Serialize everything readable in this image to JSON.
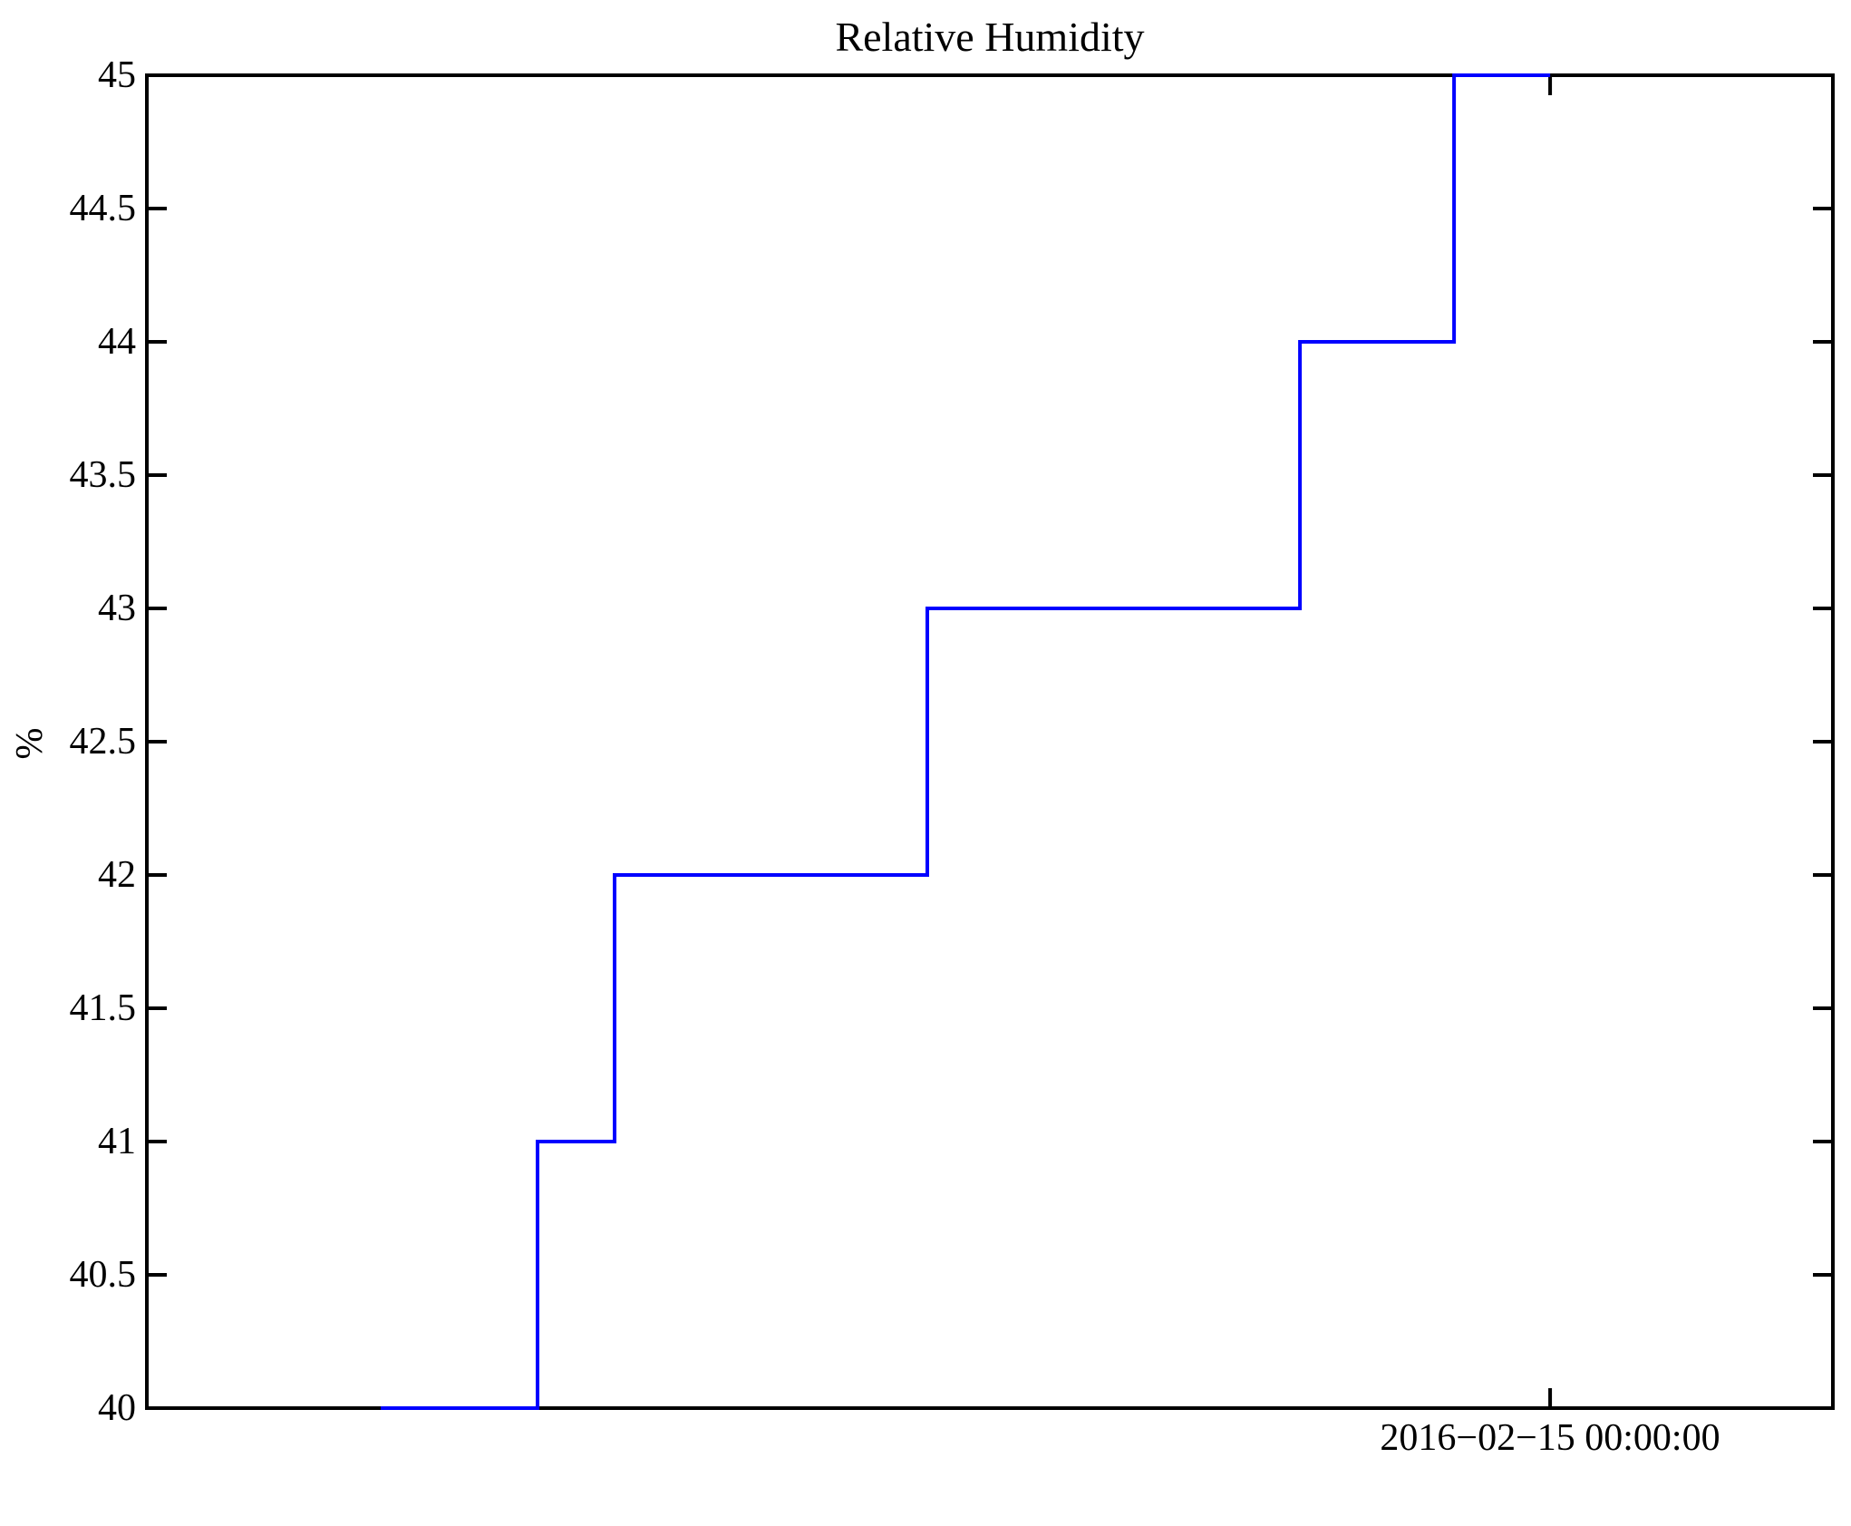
{
  "chart_data": {
    "type": "line",
    "subtype": "step",
    "title": "Relative Humidity",
    "ylabel": "%",
    "xlabel": "",
    "grid": false,
    "legend": null,
    "background_color": "#ffffff",
    "axis_color": "#000000",
    "line_color": "#0000ff",
    "y_axis": {
      "min": 40,
      "max": 45,
      "tick_step": 0.5,
      "ticks": [
        40,
        40.5,
        41,
        41.5,
        42,
        42.5,
        43,
        43.5,
        44,
        44.5,
        45
      ],
      "tick_labels": [
        "40",
        "40.5",
        "41",
        "41.5",
        "42",
        "42.5",
        "43",
        "43.5",
        "44",
        "44.5",
        "45"
      ]
    },
    "x_axis": {
      "tick_label": "2016−02−15 00:00:00",
      "tick_frac": 0.8323,
      "note": "single labeled tick; x coordinates expressed as fraction of axis width"
    },
    "series": [
      {
        "name": "Relative Humidity",
        "color": "#0000ff",
        "step_levels": [
          40,
          41,
          42,
          43,
          44,
          45
        ],
        "step_points": [
          {
            "x_frac": 0.1387,
            "y": 40
          },
          {
            "x_frac": 0.2317,
            "y": 40
          },
          {
            "x_frac": 0.2317,
            "y": 41
          },
          {
            "x_frac": 0.2774,
            "y": 41
          },
          {
            "x_frac": 0.2774,
            "y": 42
          },
          {
            "x_frac": 0.4629,
            "y": 42
          },
          {
            "x_frac": 0.4629,
            "y": 43
          },
          {
            "x_frac": 0.6839,
            "y": 43
          },
          {
            "x_frac": 0.6839,
            "y": 44
          },
          {
            "x_frac": 0.7753,
            "y": 44
          },
          {
            "x_frac": 0.7753,
            "y": 45
          },
          {
            "x_frac": 0.8323,
            "y": 45
          }
        ]
      }
    ]
  }
}
